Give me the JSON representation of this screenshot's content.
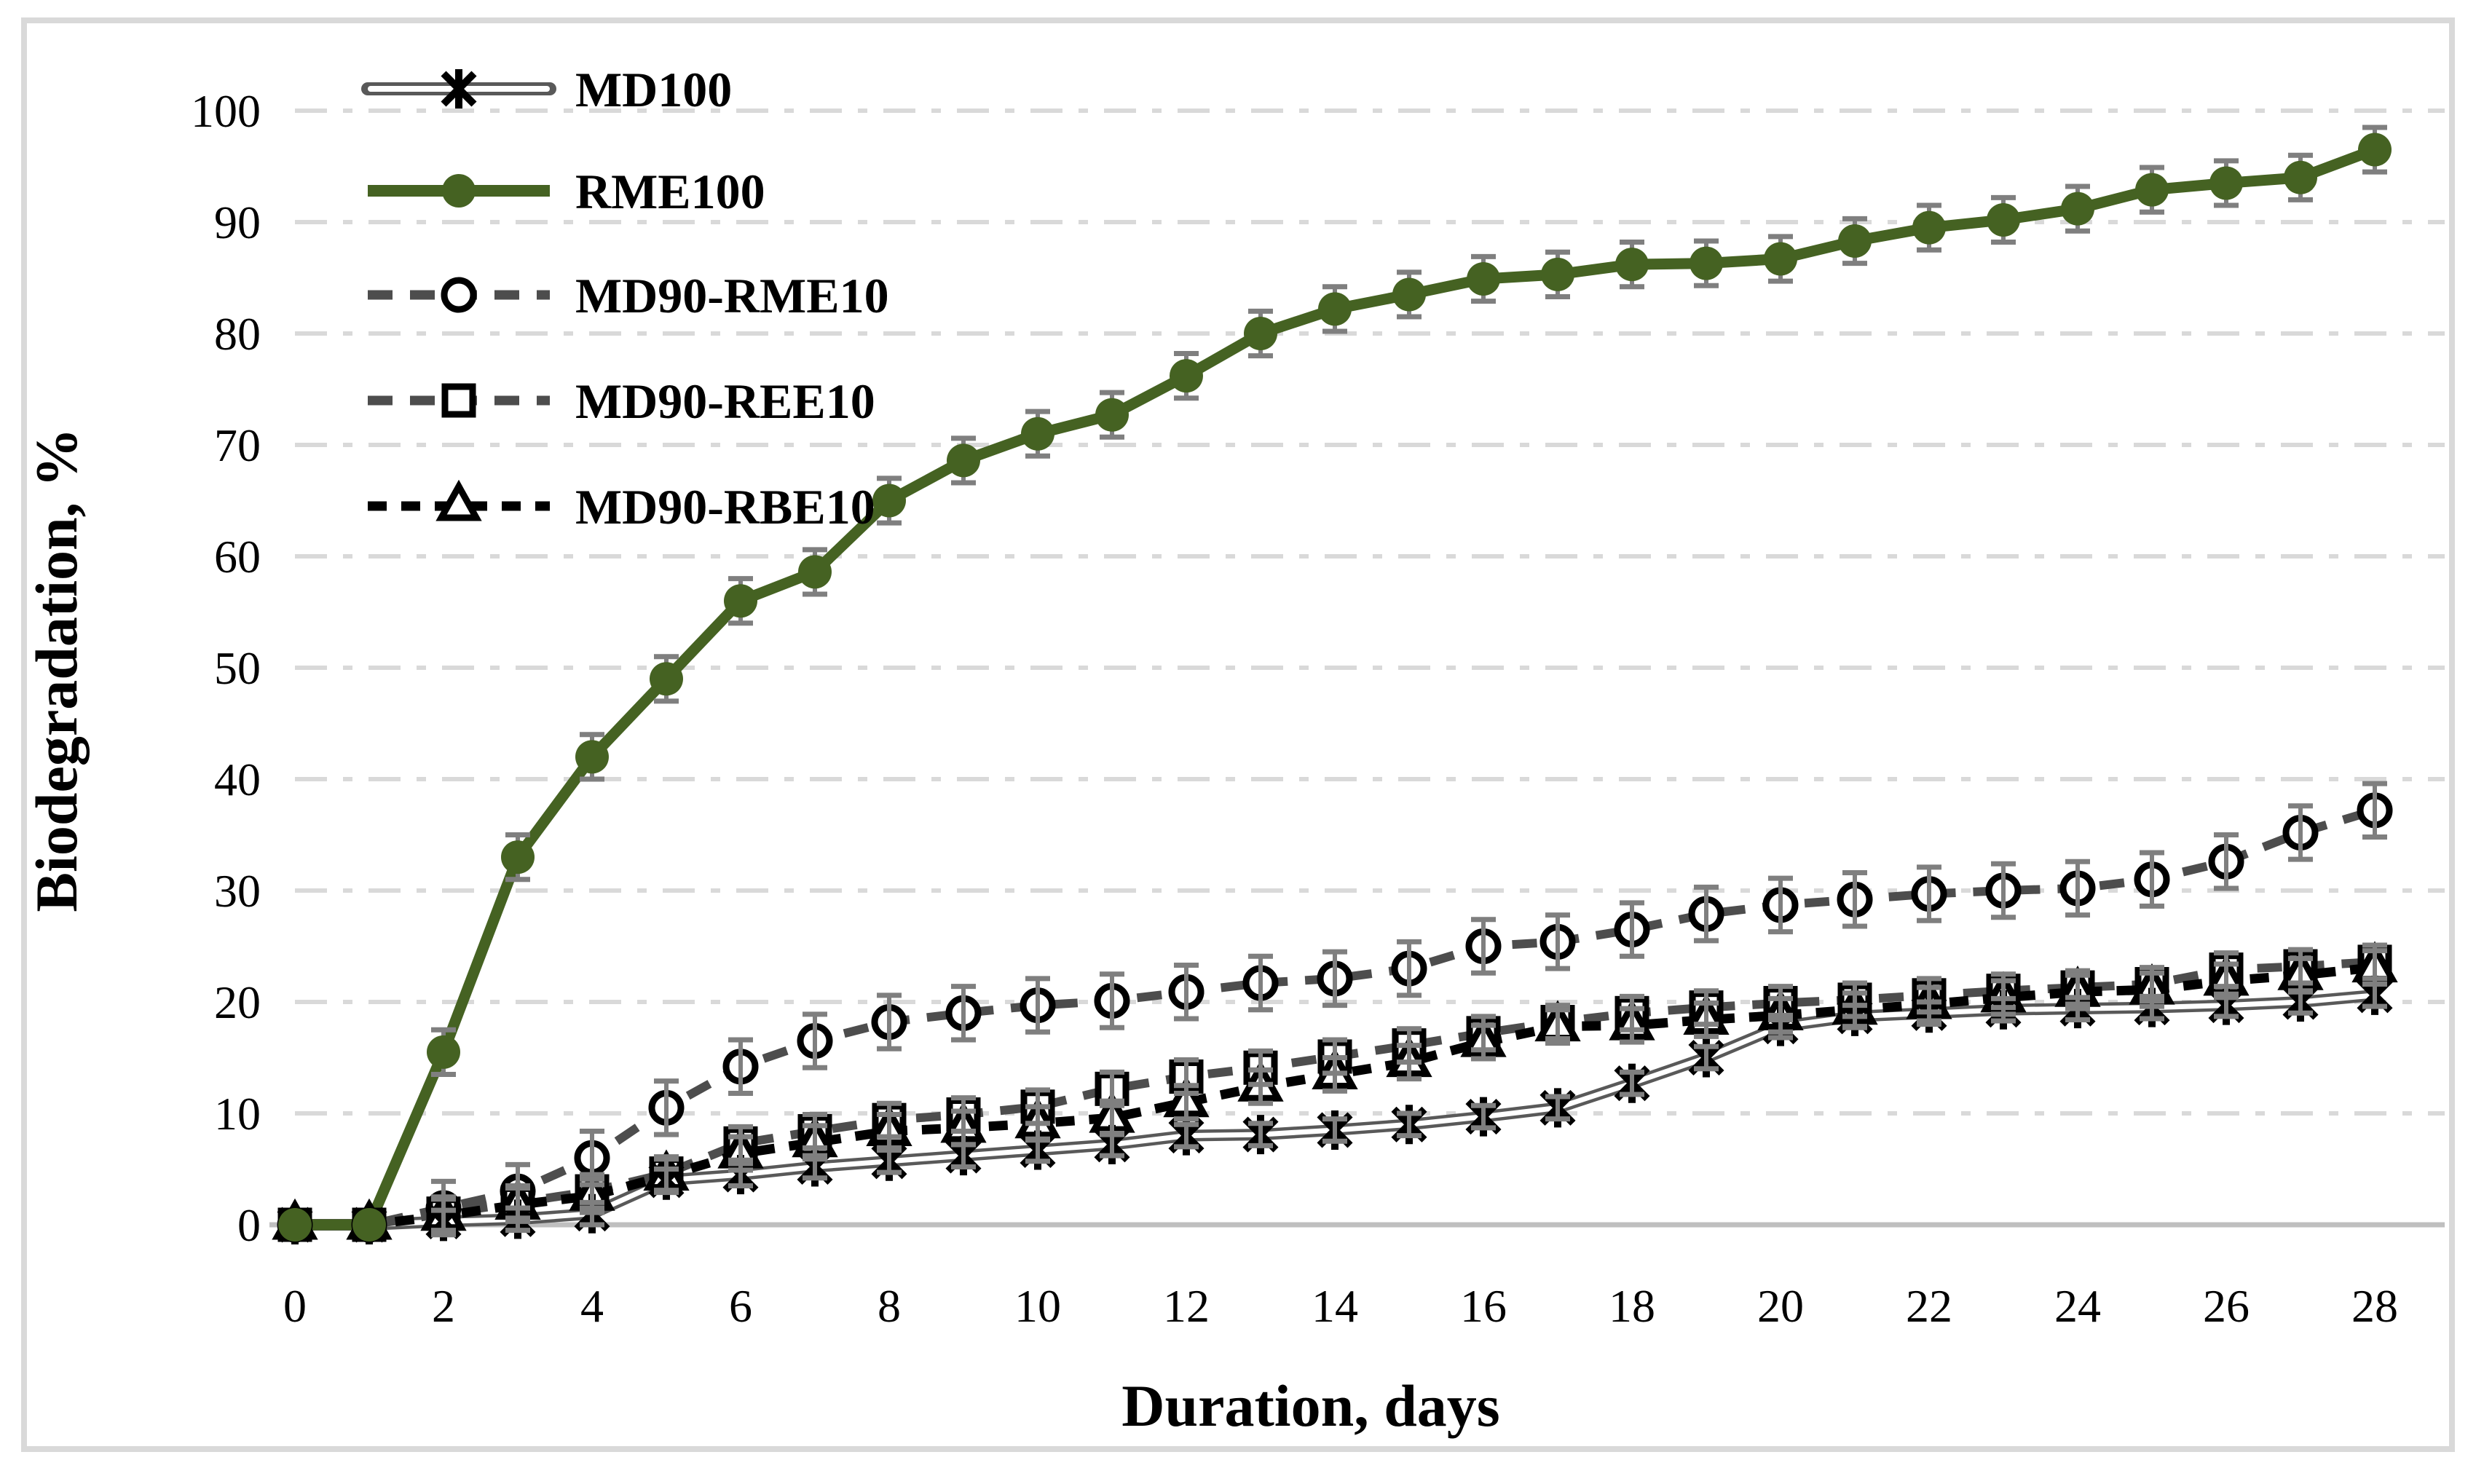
{
  "figure": {
    "background": "#ffffff",
    "border_color": "#d9d9d9",
    "axis_line_color": "#bfbfbf",
    "gridline_color": "#d9d9d9",
    "error_bar_color": "#7f7f7f"
  },
  "chart_data": {
    "type": "line",
    "title": "",
    "xlabel": "Duration, days",
    "ylabel": "Biodegradation, %",
    "xlim": [
      0,
      28
    ],
    "ylim": [
      0,
      100
    ],
    "x_ticks": [
      0,
      2,
      4,
      6,
      8,
      10,
      12,
      14,
      16,
      18,
      20,
      22,
      24,
      26,
      28
    ],
    "y_ticks": [
      0,
      10,
      20,
      30,
      40,
      50,
      60,
      70,
      80,
      90,
      100
    ],
    "grid": "horizontal-dash-dot",
    "legend_position": "top-left-inside",
    "x": [
      0,
      1,
      2,
      3,
      4,
      5,
      6,
      7,
      8,
      9,
      10,
      11,
      12,
      13,
      14,
      15,
      16,
      17,
      18,
      19,
      20,
      21,
      22,
      23,
      24,
      25,
      26,
      27,
      28
    ],
    "series": [
      {
        "name": "MD100",
        "marker": "asterisk",
        "line_style": "double-outline",
        "color": "#595959",
        "marker_color": "#000000",
        "err": 1.0,
        "values": [
          0,
          0,
          0.3,
          0.5,
          1,
          4,
          4.5,
          5.2,
          5.7,
          6.2,
          6.7,
          7.2,
          8,
          8.1,
          8.5,
          9,
          9.7,
          10.5,
          12.7,
          15,
          17.8,
          18.7,
          19,
          19.3,
          19.4,
          19.5,
          19.7,
          20,
          20.6
        ]
      },
      {
        "name": "RME100",
        "marker": "filled-circle",
        "line_style": "solid",
        "color": "#456222",
        "marker_color": "#456222",
        "err": 2.0,
        "values": [
          0,
          0,
          15.5,
          33,
          42,
          49,
          56,
          58.6,
          65,
          68.6,
          71,
          72.7,
          76.2,
          80,
          82.2,
          83.5,
          84.9,
          85.3,
          86.2,
          86.3,
          86.7,
          88.3,
          89.5,
          90.2,
          91.2,
          92.9,
          93.5,
          94,
          96.5
        ]
      },
      {
        "name": "MD90-RME10",
        "marker": "open-circle",
        "line_style": "dashed",
        "color": "#4d4d4d",
        "marker_color": "#000000",
        "err": 2.4,
        "values": [
          0,
          0,
          1.5,
          3,
          6,
          10.5,
          14.2,
          16.5,
          18.2,
          19,
          19.7,
          20.1,
          20.9,
          21.7,
          22.1,
          23,
          25,
          25.4,
          26.5,
          27.9,
          28.7,
          29.2,
          29.7,
          30,
          30.2,
          31,
          32.6,
          35.2,
          37.2
        ]
      },
      {
        "name": "MD90-REE10",
        "marker": "open-square",
        "line_style": "dashed",
        "color": "#4d4d4d",
        "marker_color": "#000000",
        "err": 1.5,
        "values": [
          0,
          0,
          1,
          2,
          3,
          4.6,
          7.3,
          8.4,
          9.4,
          9.9,
          10.6,
          12.2,
          13.3,
          14.1,
          15.1,
          16.1,
          17.2,
          18.2,
          19,
          19.5,
          19.9,
          20.2,
          20.6,
          21,
          21.3,
          21.6,
          22.9,
          23.2,
          23.6
        ]
      },
      {
        "name": "MD90-RBE10",
        "marker": "open-triangle",
        "line_style": "dashed",
        "color": "#000000",
        "marker_color": "#000000",
        "err": 1.5,
        "values": [
          0,
          0,
          0.8,
          1.8,
          2.6,
          4.4,
          6.4,
          7.4,
          8.4,
          8.7,
          9.1,
          9.6,
          11,
          12.4,
          13.5,
          14.6,
          16.4,
          17.8,
          17.9,
          18.4,
          18.8,
          19.3,
          19.8,
          20.4,
          20.9,
          21.1,
          21.9,
          22.4,
          23.1
        ]
      }
    ]
  }
}
